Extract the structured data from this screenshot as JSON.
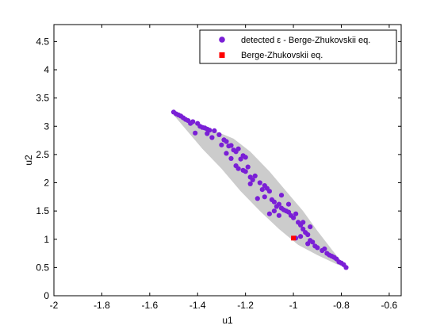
{
  "chart_data": {
    "type": "scatter",
    "xlabel": "u1",
    "ylabel": "u2",
    "xlim": [
      -2,
      -0.55
    ],
    "ylim": [
      0,
      4.8
    ],
    "xticks": [
      -2,
      -1.8,
      -1.6,
      -1.4,
      -1.2,
      -1,
      -0.8,
      -0.6
    ],
    "yticks": [
      0,
      0.5,
      1,
      1.5,
      2,
      2.5,
      3,
      3.5,
      4,
      4.5
    ],
    "grid": false,
    "legend_position": "top-right",
    "colors": {
      "detected": "#7a1fd6",
      "eq": "#ff0000",
      "region": "#cccccc"
    },
    "region_polygon": [
      [
        -1.5,
        3.25
      ],
      [
        -1.42,
        3.08
      ],
      [
        -1.33,
        2.92
      ],
      [
        -1.25,
        2.78
      ],
      [
        -1.18,
        2.55
      ],
      [
        -1.1,
        2.2
      ],
      [
        -1.02,
        1.8
      ],
      [
        -0.96,
        1.5
      ],
      [
        -0.9,
        1.15
      ],
      [
        -0.84,
        0.82
      ],
      [
        -0.78,
        0.5
      ],
      [
        -0.82,
        0.56
      ],
      [
        -0.9,
        0.72
      ],
      [
        -0.98,
        0.9
      ],
      [
        -1.06,
        1.18
      ],
      [
        -1.14,
        1.5
      ],
      [
        -1.22,
        1.85
      ],
      [
        -1.3,
        2.25
      ],
      [
        -1.38,
        2.6
      ],
      [
        -1.45,
        2.95
      ],
      [
        -1.5,
        3.2
      ]
    ],
    "series": [
      {
        "name": "detected ε - Berge-Zhukovskii eq.",
        "marker": "circle",
        "points": [
          [
            -1.5,
            3.25
          ],
          [
            -1.49,
            3.22
          ],
          [
            -1.48,
            3.2
          ],
          [
            -1.47,
            3.18
          ],
          [
            -1.46,
            3.15
          ],
          [
            -1.45,
            3.12
          ],
          [
            -1.44,
            3.1
          ],
          [
            -1.42,
            3.08
          ],
          [
            -1.4,
            3.05
          ],
          [
            -1.39,
            3.0
          ],
          [
            -1.38,
            2.98
          ],
          [
            -1.37,
            2.97
          ],
          [
            -1.36,
            2.95
          ],
          [
            -1.35,
            2.93
          ],
          [
            -1.33,
            2.92
          ],
          [
            -1.41,
            2.88
          ],
          [
            -1.31,
            2.85
          ],
          [
            -1.29,
            2.76
          ],
          [
            -1.28,
            2.73
          ],
          [
            -1.27,
            2.65
          ],
          [
            -1.26,
            2.66
          ],
          [
            -1.25,
            2.58
          ],
          [
            -1.24,
            2.55
          ],
          [
            -1.23,
            2.6
          ],
          [
            -1.21,
            2.48
          ],
          [
            -1.22,
            2.42
          ],
          [
            -1.2,
            2.45
          ],
          [
            -1.26,
            2.43
          ],
          [
            -1.24,
            2.3
          ],
          [
            -1.23,
            2.25
          ],
          [
            -1.21,
            2.22
          ],
          [
            -1.2,
            2.2
          ],
          [
            -1.19,
            2.28
          ],
          [
            -1.17,
            2.05
          ],
          [
            -1.16,
            2.12
          ],
          [
            -1.14,
            2.0
          ],
          [
            -1.12,
            1.95
          ],
          [
            -1.11,
            1.9
          ],
          [
            -1.1,
            1.85
          ],
          [
            -1.12,
            1.75
          ],
          [
            -1.09,
            1.7
          ],
          [
            -1.08,
            1.66
          ],
          [
            -1.06,
            1.62
          ],
          [
            -1.07,
            1.58
          ],
          [
            -1.05,
            1.55
          ],
          [
            -1.04,
            1.52
          ],
          [
            -1.03,
            1.5
          ],
          [
            -1.02,
            1.48
          ],
          [
            -1.01,
            1.42
          ],
          [
            -1.0,
            1.38
          ],
          [
            -0.99,
            1.45
          ],
          [
            -0.98,
            1.3
          ],
          [
            -0.97,
            1.25
          ],
          [
            -0.96,
            1.18
          ],
          [
            -0.95,
            1.12
          ],
          [
            -0.99,
            1.02
          ],
          [
            -0.97,
            1.05
          ],
          [
            -0.94,
            1.08
          ],
          [
            -0.93,
            0.98
          ],
          [
            -0.92,
            0.95
          ],
          [
            -0.91,
            0.88
          ],
          [
            -0.9,
            0.85
          ],
          [
            -0.88,
            0.8
          ],
          [
            -0.86,
            0.75
          ],
          [
            -0.85,
            0.72
          ],
          [
            -0.84,
            0.7
          ],
          [
            -0.82,
            0.65
          ],
          [
            -0.81,
            0.6
          ],
          [
            -0.8,
            0.58
          ],
          [
            -0.79,
            0.55
          ],
          [
            -0.78,
            0.5
          ],
          [
            -1.1,
            1.45
          ],
          [
            -1.08,
            1.5
          ],
          [
            -1.15,
            1.72
          ],
          [
            -1.18,
            1.98
          ],
          [
            -1.05,
            1.78
          ],
          [
            -1.02,
            1.62
          ],
          [
            -0.96,
            1.3
          ],
          [
            -1.28,
            2.52
          ],
          [
            -1.3,
            2.67
          ],
          [
            -1.34,
            2.8
          ],
          [
            -1.36,
            2.87
          ],
          [
            -1.43,
            3.05
          ],
          [
            -1.18,
            2.1
          ],
          [
            -1.13,
            1.88
          ],
          [
            -1.06,
            1.42
          ],
          [
            -0.93,
            1.22
          ],
          [
            -0.94,
            0.92
          ],
          [
            -0.87,
            0.83
          ],
          [
            -0.83,
            0.68
          ]
        ]
      },
      {
        "name": "Berge-Zhukovskii eq.",
        "marker": "square",
        "points": [
          [
            -1.0,
            1.02
          ]
        ]
      }
    ]
  }
}
